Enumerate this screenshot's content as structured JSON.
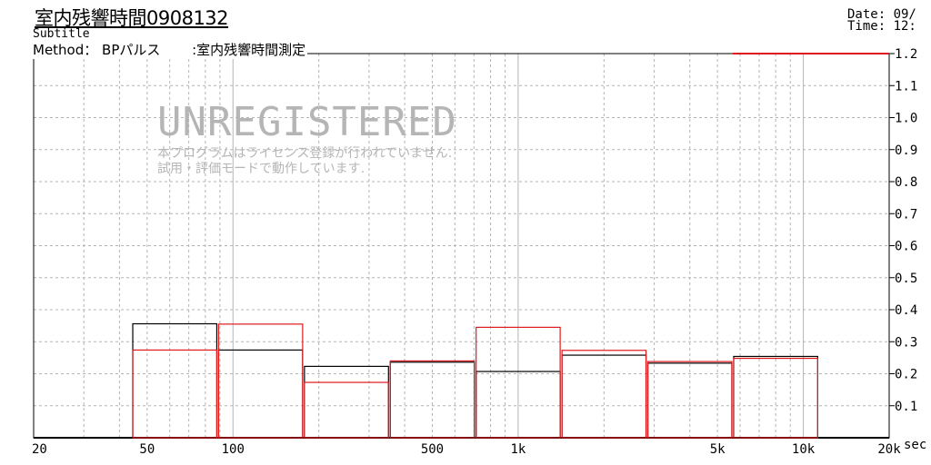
{
  "header": {
    "title": "室内残響時間0908132",
    "subtitle": "Subtitle",
    "method": "Method： BPパルス　　 :室内残響時間測定",
    "date": "Date: 09/",
    "time": "Time: 12:"
  },
  "watermark": {
    "headline": "UNREGISTERED",
    "line1": "本プログラムはライセンス登録が行われていません.",
    "line2": "試用・評価モードで動作しています."
  },
  "colors": {
    "series_black": "#000000",
    "series_red": "#e0181c",
    "grid": "#b4b4b4",
    "watermark": "#b5b5b5"
  },
  "chart_data": {
    "type": "bar",
    "x_scale": "log",
    "xlim": [
      20,
      20000
    ],
    "ylim": [
      0,
      1.2
    ],
    "grid": true,
    "unit_label": "sec",
    "x_tick_labels": [
      {
        "value": 20,
        "label": "20"
      },
      {
        "value": 50,
        "label": "50"
      },
      {
        "value": 100,
        "label": "100"
      },
      {
        "value": 500,
        "label": "500"
      },
      {
        "value": 1000,
        "label": "1k"
      },
      {
        "value": 5000,
        "label": "5k"
      },
      {
        "value": 10000,
        "label": "10k"
      },
      {
        "value": 20000,
        "label": "20k"
      }
    ],
    "y_tick_labels": [
      "0.1",
      "0.2",
      "0.3",
      "0.4",
      "0.5",
      "0.6",
      "0.7",
      "0.8",
      "0.9",
      "1.0",
      "1.1",
      "1.2"
    ],
    "bands": [
      {
        "from": 44.2,
        "to": 88.4
      },
      {
        "from": 88.4,
        "to": 176.8
      },
      {
        "from": 176.8,
        "to": 353.6
      },
      {
        "from": 353.6,
        "to": 707.1
      },
      {
        "from": 707.1,
        "to": 1414.2
      },
      {
        "from": 1414.2,
        "to": 2828.4
      },
      {
        "from": 2828.4,
        "to": 5656.9
      },
      {
        "from": 5656.9,
        "to": 11313.7
      }
    ],
    "series": [
      {
        "color": "#000000",
        "values": [
          0.356,
          0.274,
          0.223,
          0.236,
          0.207,
          0.258,
          0.233,
          0.254
        ]
      },
      {
        "color": "#e0181c",
        "values": [
          0.274,
          0.355,
          0.173,
          0.24,
          0.345,
          0.273,
          0.238,
          0.248
        ]
      }
    ],
    "red_reference_value": 1.2,
    "red_reference_from": 5656.9
  }
}
